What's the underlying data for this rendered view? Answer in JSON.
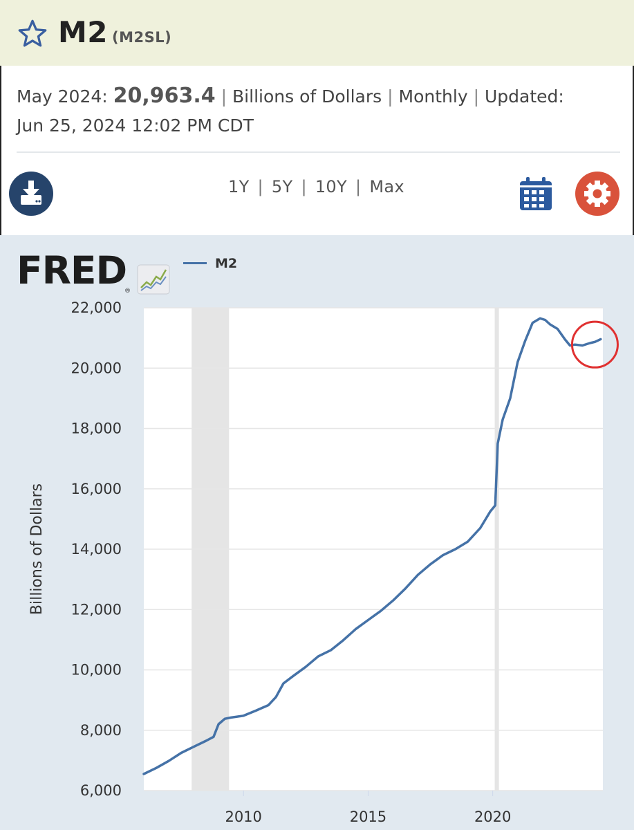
{
  "header": {
    "title": "M2",
    "series_id": "(M2SL)"
  },
  "info": {
    "period_label": "May 2024:",
    "value": "20,963.4",
    "units": "Billions of Dollars",
    "frequency": "Monthly",
    "updated_label": "Updated:",
    "updated": "Jun 25, 2024 12:02 PM CDT"
  },
  "toolbar": {
    "ranges": [
      "1Y",
      "5Y",
      "10Y",
      "Max"
    ]
  },
  "icons": {
    "favorite": "star-icon",
    "download": "download-icon",
    "calendar": "calendar-icon",
    "settings": "gear-icon"
  },
  "colors": {
    "header_bg": "#eff1dc",
    "chart_bg": "#e1e9f0",
    "line": "#4572a7",
    "recession": "#e5e5e5",
    "download": "#26446b",
    "settings": "#d9523b",
    "highlight": "#e03131"
  },
  "branding": {
    "logo_text": "FRED"
  },
  "chart_data": {
    "type": "line",
    "title": "",
    "xlabel": "",
    "ylabel": "Billions of Dollars",
    "xlim": [
      2006.0,
      2024.42
    ],
    "ylim": [
      6000,
      22000
    ],
    "y_ticks": [
      6000,
      8000,
      10000,
      12000,
      14000,
      16000,
      18000,
      20000,
      22000
    ],
    "y_tick_labels": [
      "6,000",
      "8,000",
      "10,000",
      "12,000",
      "14,000",
      "16,000",
      "18,000",
      "20,000",
      "22,000"
    ],
    "x_ticks": [
      2010,
      2015,
      2020
    ],
    "x_tick_labels": [
      "2010",
      "2015",
      "2020"
    ],
    "grid": true,
    "legend_position": "top-left",
    "recession_bands": [
      [
        2007.92,
        2009.42
      ],
      [
        2020.08,
        2020.25
      ]
    ],
    "highlight": {
      "description": "red circle around latest value",
      "x": 2024.1,
      "y": 20850
    },
    "series": [
      {
        "name": "M2",
        "x": [
          2006.0,
          2006.5,
          2007.0,
          2007.5,
          2008.0,
          2008.5,
          2008.8,
          2009.0,
          2009.25,
          2009.5,
          2010.0,
          2010.5,
          2011.0,
          2011.3,
          2011.6,
          2012.0,
          2012.5,
          2013.0,
          2013.5,
          2014.0,
          2014.5,
          2015.0,
          2015.5,
          2016.0,
          2016.5,
          2017.0,
          2017.5,
          2018.0,
          2018.5,
          2019.0,
          2019.5,
          2019.9,
          2020.1,
          2020.2,
          2020.4,
          2020.7,
          2021.0,
          2021.3,
          2021.6,
          2021.9,
          2022.1,
          2022.3,
          2022.6,
          2022.9,
          2023.1,
          2023.3,
          2023.6,
          2023.9,
          2024.1,
          2024.33
        ],
        "y": [
          6550,
          6750,
          6980,
          7250,
          7450,
          7650,
          7780,
          8200,
          8380,
          8420,
          8480,
          8650,
          8830,
          9100,
          9550,
          9800,
          10100,
          10450,
          10650,
          10980,
          11350,
          11650,
          11950,
          12300,
          12700,
          13150,
          13500,
          13800,
          14000,
          14250,
          14700,
          15250,
          15450,
          17500,
          18300,
          19000,
          20200,
          20900,
          21500,
          21650,
          21600,
          21450,
          21300,
          20950,
          20750,
          20780,
          20750,
          20830,
          20870,
          20960
        ]
      }
    ]
  }
}
